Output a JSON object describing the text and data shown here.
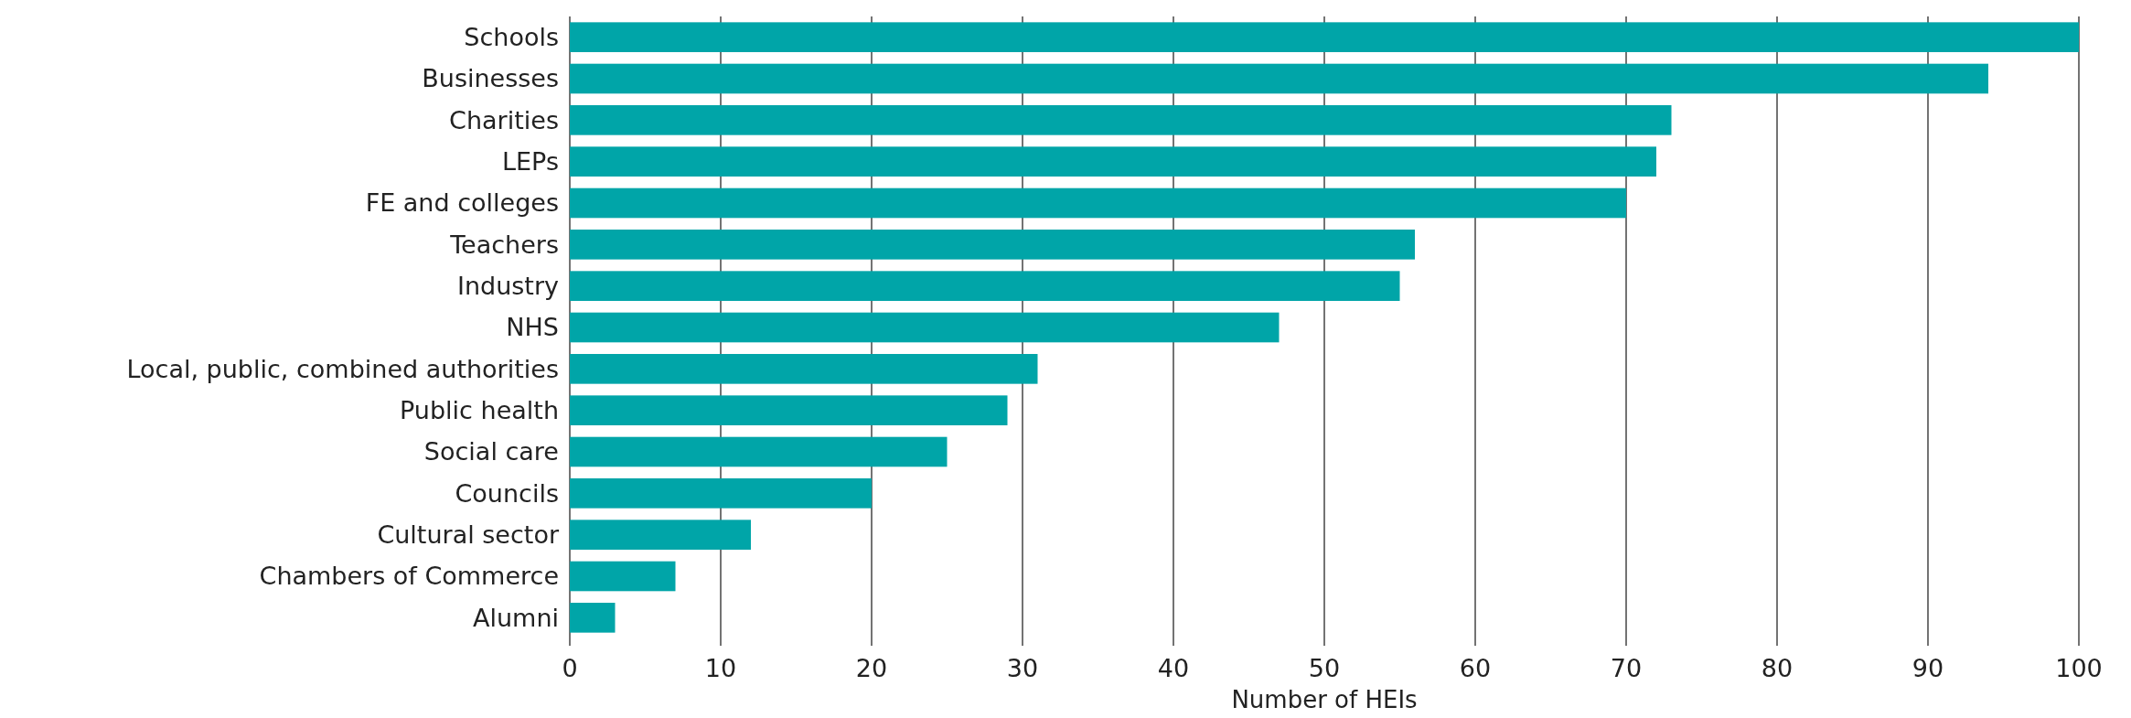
{
  "chart_data": {
    "type": "bar",
    "orientation": "horizontal",
    "xlabel": "Number of HEIs",
    "categories": [
      "Schools",
      "Businesses",
      "Charities",
      "LEPs",
      "FE and colleges",
      "Teachers",
      "Industry",
      "NHS",
      "Local, public, combined authorities",
      "Public health",
      "Social care",
      "Councils",
      "Cultural sector",
      "Chambers of Commerce",
      "Alumni"
    ],
    "values": [
      100,
      94,
      73,
      72,
      70,
      56,
      55,
      47,
      31,
      29,
      25,
      20,
      12,
      7,
      3
    ],
    "color": "#00a5a8",
    "xlim": [
      0,
      100
    ],
    "xticks": [
      0,
      10,
      20,
      30,
      40,
      50,
      60,
      70,
      80,
      90,
      100
    ],
    "grid": "x"
  }
}
